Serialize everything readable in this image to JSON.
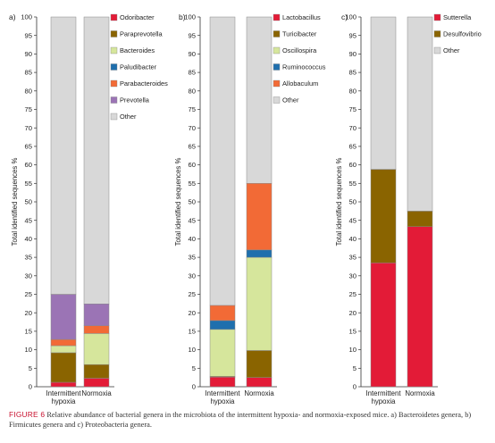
{
  "colors": {
    "Odoribacter": "#e31b37",
    "Paraprevotella": "#8a6400",
    "Bacteroides": "#d6e69c",
    "Paludibacter": "#1f6fad",
    "Parabacteroides": "#f26a36",
    "Prevotella": "#9b74b5",
    "Other": "#d8d8d8",
    "Lactobacillus": "#e31b37",
    "Turicibacter": "#8a6400",
    "Oscillospira": "#d6e69c",
    "Ruminococcus": "#1f6fad",
    "Allobaculum": "#f26a36",
    "Sutterella": "#e31b37",
    "Desulfovibrio": "#8a6400"
  },
  "chart_data": [
    {
      "type": "bar",
      "stacked": true,
      "panel_label": "a)",
      "ylabel": "Total identified sequences %",
      "ylim": [
        0,
        100
      ],
      "yticks": [
        0,
        5,
        10,
        15,
        20,
        25,
        30,
        35,
        40,
        45,
        50,
        55,
        60,
        65,
        70,
        75,
        80,
        85,
        90,
        95,
        100
      ],
      "categories": [
        [
          "Intermittent",
          "hypoxia"
        ],
        [
          "Normoxia"
        ]
      ],
      "legend": [
        "Odoribacter",
        "Paraprevotella",
        "Bacteroides",
        "Paludibacter",
        "Parabacteroides",
        "Prevotella",
        "Other"
      ],
      "series": [
        {
          "name": "Odoribacter",
          "values": [
            1.2,
            2.3
          ]
        },
        {
          "name": "Paraprevotella",
          "values": [
            8.0,
            3.7
          ]
        },
        {
          "name": "Bacteroides",
          "values": [
            1.9,
            8.4
          ]
        },
        {
          "name": "Paludibacter",
          "values": [
            0.0,
            0.0
          ]
        },
        {
          "name": "Parabacteroides",
          "values": [
            1.7,
            2.1
          ]
        },
        {
          "name": "Prevotella",
          "values": [
            12.2,
            5.9
          ]
        },
        {
          "name": "Other",
          "values": [
            75.0,
            77.6
          ]
        }
      ]
    },
    {
      "type": "bar",
      "stacked": true,
      "panel_label": "b)",
      "ylabel": "Total identified sequences %",
      "ylim": [
        0,
        100
      ],
      "yticks": [
        0,
        5,
        10,
        15,
        20,
        25,
        30,
        35,
        40,
        45,
        50,
        55,
        60,
        65,
        70,
        75,
        80,
        85,
        90,
        95,
        100
      ],
      "categories": [
        [
          "Intermittent",
          "hypoxia"
        ],
        [
          "Normoxia"
        ]
      ],
      "legend": [
        "Lactobacillus",
        "Turicibacter",
        "Oscillospira",
        "Ruminococcus",
        "Allobaculum",
        "Other"
      ],
      "series": [
        {
          "name": "Lactobacillus",
          "values": [
            2.6,
            2.5
          ]
        },
        {
          "name": "Turicibacter",
          "values": [
            0.2,
            7.3
          ]
        },
        {
          "name": "Oscillospira",
          "values": [
            12.7,
            25.2
          ]
        },
        {
          "name": "Ruminococcus",
          "values": [
            2.4,
            2.0
          ]
        },
        {
          "name": "Allobaculum",
          "values": [
            4.1,
            18.0
          ]
        },
        {
          "name": "Other",
          "values": [
            78.0,
            45.0
          ]
        }
      ]
    },
    {
      "type": "bar",
      "stacked": true,
      "panel_label": "c)",
      "ylabel": "Total identified sequences %",
      "ylim": [
        0,
        100
      ],
      "yticks": [
        0,
        5,
        10,
        15,
        20,
        25,
        30,
        35,
        40,
        45,
        50,
        55,
        60,
        65,
        70,
        75,
        80,
        85,
        90,
        95,
        100
      ],
      "categories": [
        [
          "Intermittent",
          "hypoxia"
        ],
        [
          "Normoxia"
        ]
      ],
      "legend": [
        "Sutterella",
        "Desulfovibrio",
        "Other"
      ],
      "series": [
        {
          "name": "Sutterella",
          "values": [
            33.5,
            43.3
          ]
        },
        {
          "name": "Desulfovibrio",
          "values": [
            25.3,
            4.2
          ]
        },
        {
          "name": "Other",
          "values": [
            41.2,
            52.5
          ]
        }
      ]
    }
  ],
  "caption": {
    "figure_label": "FIGURE 6",
    "text": " Relative abundance of bacterial genera in the microbiota of the intermittent hypoxia- and normoxia-exposed mice. a) Bacteroidetes genera, b) Firmicutes genera and c) Proteobacteria genera."
  }
}
